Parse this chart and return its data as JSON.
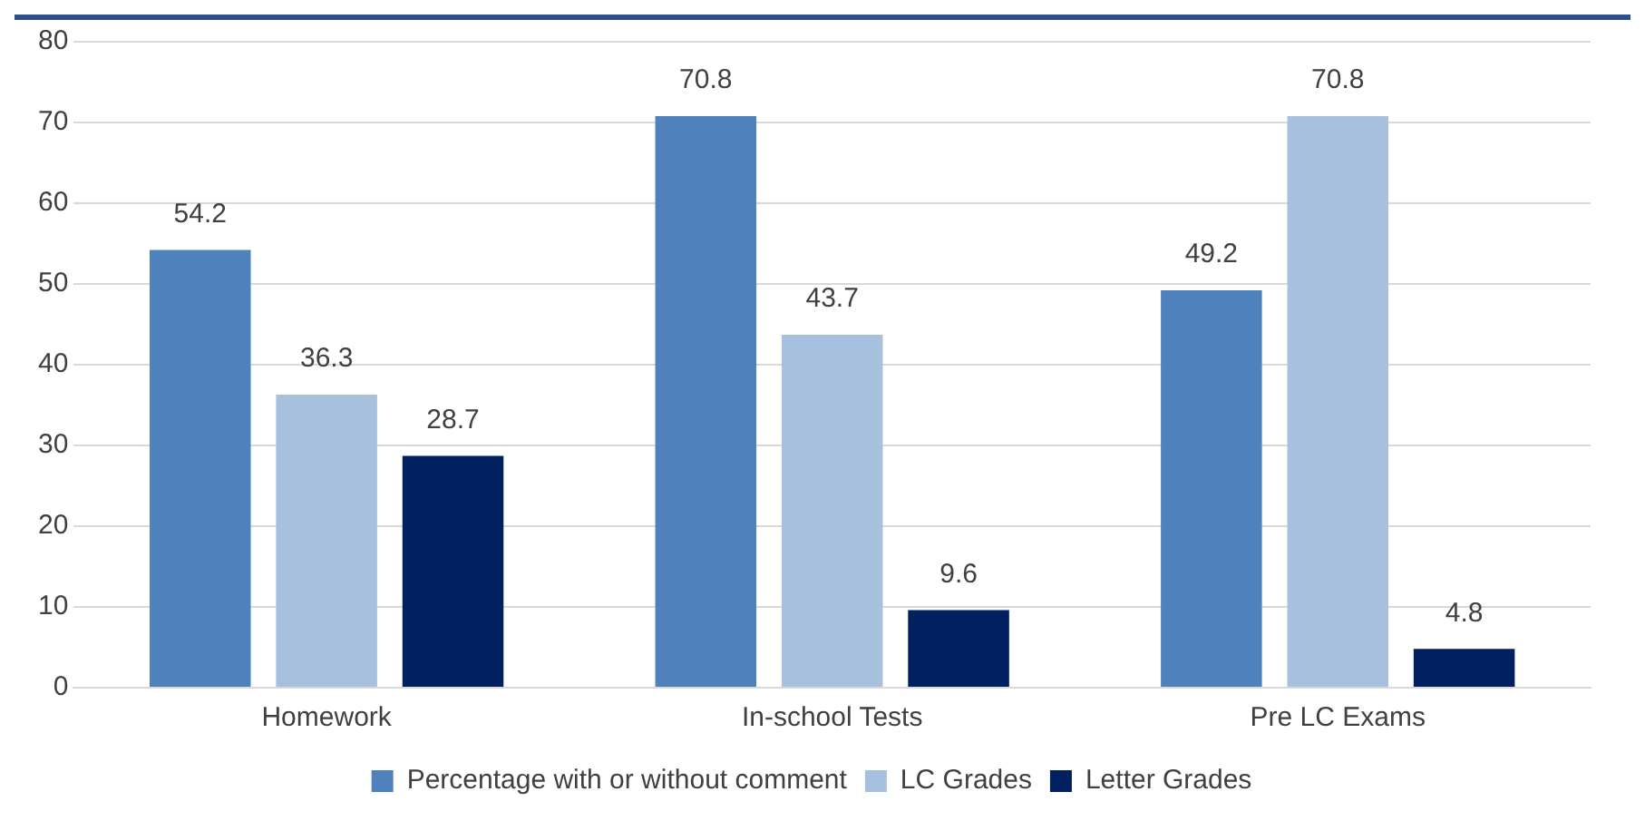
{
  "chart_data": {
    "type": "bar",
    "categories": [
      "Homework",
      "In-school Tests",
      "Pre LC Exams"
    ],
    "series": [
      {
        "name": "Percentage with or without comment",
        "color": "#4f81bd",
        "values": [
          54.2,
          70.8,
          49.2
        ]
      },
      {
        "name": "LC Grades",
        "color": "#a7c0de",
        "values": [
          36.3,
          43.7,
          70.8
        ]
      },
      {
        "name": "Letter Grades",
        "color": "#002060",
        "values": [
          28.7,
          9.6,
          4.8
        ]
      }
    ],
    "ylim": [
      0,
      80
    ],
    "yticks": [
      0,
      10,
      20,
      30,
      40,
      50,
      60,
      70,
      80
    ],
    "grid": "y",
    "legend": "bottom",
    "data_labels": true
  }
}
